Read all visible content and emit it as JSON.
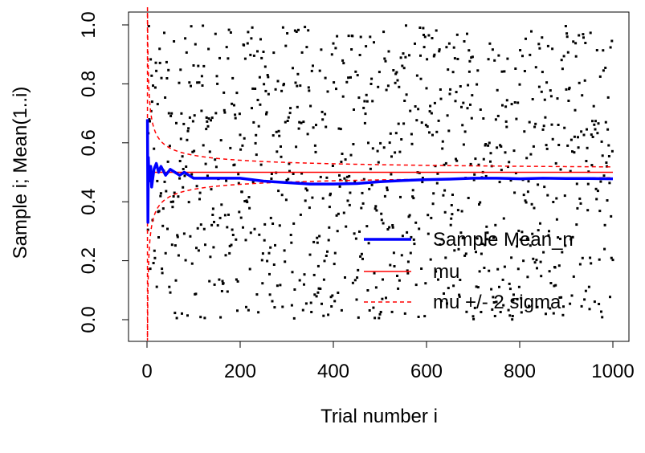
{
  "chart_data": {
    "type": "line",
    "xlabel": "Trial number i",
    "ylabel": "Sample i; Mean(1..i)",
    "xlim": [
      0,
      1000
    ],
    "ylim": [
      0,
      1
    ],
    "x_ticks": [
      0,
      200,
      400,
      600,
      800,
      1000
    ],
    "y_ticks": [
      0.0,
      0.2,
      0.4,
      0.6,
      0.8,
      1.0
    ],
    "x_tick_labels": [
      "0",
      "200",
      "400",
      "600",
      "800",
      "1000"
    ],
    "y_tick_labels": [
      "0.0",
      "0.2",
      "0.4",
      "0.6",
      "0.8",
      "1.0"
    ],
    "mu": 0.5,
    "sigma": 0.2887,
    "n_samples": 1000,
    "samples_note": "uniform(0,1) scatter of individual samples",
    "series": [
      {
        "name": "Sample Mean_n",
        "color": "#0000ff",
        "style": "solid-thick",
        "x": [
          1,
          2,
          3,
          4,
          5,
          6,
          8,
          10,
          15,
          20,
          25,
          30,
          40,
          50,
          60,
          70,
          80,
          90,
          100,
          120,
          150,
          200,
          250,
          300,
          350,
          400,
          450,
          500,
          550,
          600,
          650,
          700,
          750,
          800,
          850,
          900,
          950,
          1000
        ],
        "y": [
          0.68,
          0.33,
          0.55,
          0.47,
          0.5,
          0.48,
          0.52,
          0.45,
          0.51,
          0.53,
          0.5,
          0.52,
          0.49,
          0.51,
          0.5,
          0.49,
          0.5,
          0.49,
          0.48,
          0.48,
          0.48,
          0.48,
          0.47,
          0.465,
          0.46,
          0.46,
          0.462,
          0.468,
          0.472,
          0.475,
          0.477,
          0.48,
          0.48,
          0.478,
          0.48,
          0.479,
          0.479,
          0.478
        ]
      },
      {
        "name": "mu",
        "color": "#ff0000",
        "style": "solid"
      },
      {
        "name": "mu +/- 2 sigma",
        "color": "#ff0000",
        "style": "dashed"
      }
    ],
    "legend": {
      "position": "bottom-right",
      "entries": [
        "Sample Mean_n",
        "mu",
        "mu +/- 2 sigma"
      ]
    },
    "grid": false
  }
}
